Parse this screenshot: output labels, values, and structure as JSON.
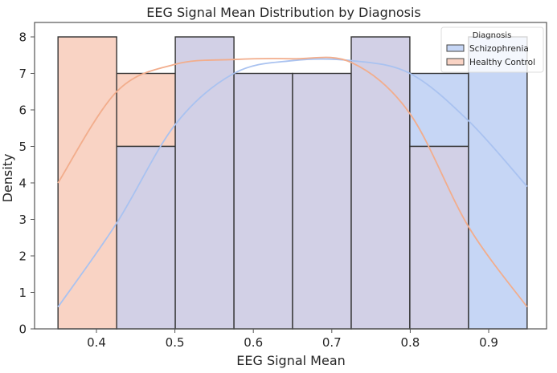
{
  "chart_data": {
    "type": "bar",
    "title": "EEG Signal Mean Distribution by Diagnosis",
    "xlabel": "EEG Signal Mean",
    "ylabel": "Density",
    "xlim": [
      0.32,
      0.97
    ],
    "ylim": [
      0,
      8.3
    ],
    "x_ticks": [
      0.4,
      0.5,
      0.6,
      0.7,
      0.8,
      0.9
    ],
    "x_tick_labels": [
      "0.4",
      "0.5",
      "0.6",
      "0.7",
      "0.8",
      "0.9"
    ],
    "y_ticks": [
      0,
      1,
      2,
      3,
      4,
      5,
      6,
      7,
      8
    ],
    "y_tick_labels": [
      "0",
      "1",
      "2",
      "3",
      "4",
      "5",
      "6",
      "7",
      "8"
    ],
    "grid": false,
    "legend": {
      "title": "Diagnosis",
      "position": "upper right",
      "entries": [
        "Schizophrenia",
        "Healthy Control"
      ]
    },
    "bin_edges": [
      0.351,
      0.4258,
      0.5005,
      0.5753,
      0.65,
      0.7248,
      0.7995,
      0.8743,
      0.949
    ],
    "series": [
      {
        "name": "Schizophrenia",
        "color": "#c6d6f5",
        "kde_color": "#a9c2f0",
        "values": [
          0,
          5,
          8,
          7,
          7,
          8,
          7,
          8
        ],
        "kde": [
          [
            0.351,
            0.6
          ],
          [
            0.4258,
            2.9
          ],
          [
            0.5005,
            5.6
          ],
          [
            0.5753,
            7.0
          ],
          [
            0.65,
            7.35
          ],
          [
            0.7248,
            7.35
          ],
          [
            0.7995,
            7.0
          ],
          [
            0.8743,
            5.7
          ],
          [
            0.949,
            3.9
          ]
        ]
      },
      {
        "name": "Healthy Control",
        "color": "#f9d3c4",
        "kde_color": "#f2ad8c",
        "values": [
          8,
          7,
          8,
          7,
          7,
          8,
          5,
          0
        ],
        "kde": [
          [
            0.351,
            4.0
          ],
          [
            0.4258,
            6.5
          ],
          [
            0.5005,
            7.25
          ],
          [
            0.5753,
            7.38
          ],
          [
            0.65,
            7.4
          ],
          [
            0.7248,
            7.3
          ],
          [
            0.7995,
            5.9
          ],
          [
            0.8743,
            2.8
          ],
          [
            0.949,
            0.6
          ]
        ]
      }
    ],
    "overlap_color": "#d2d0e6"
  }
}
